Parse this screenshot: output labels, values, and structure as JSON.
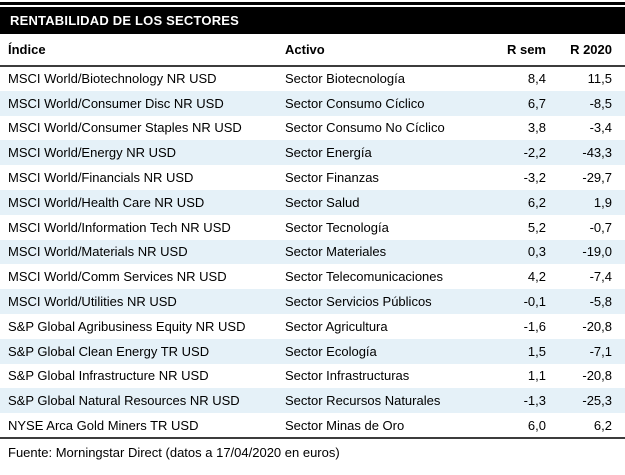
{
  "chart_data": {
    "type": "table",
    "title": "RENTABILIDAD DE LOS SECTORES",
    "columns": [
      "Índice",
      "Activo",
      "R sem",
      "R 2020"
    ],
    "rows": [
      [
        "MSCI World/Biotechnology NR USD",
        "Sector Biotecnología",
        "8,4",
        "11,5"
      ],
      [
        "MSCI World/Consumer Disc NR USD",
        "Sector Consumo Cíclico",
        "6,7",
        "-8,5"
      ],
      [
        "MSCI World/Consumer Staples NR USD",
        "Sector Consumo No Cíclico",
        "3,8",
        "-3,4"
      ],
      [
        "MSCI World/Energy NR USD",
        "Sector Energía",
        "-2,2",
        "-43,3"
      ],
      [
        "MSCI World/Financials NR USD",
        "Sector Finanzas",
        "-3,2",
        "-29,7"
      ],
      [
        "MSCI World/Health Care NR USD",
        "Sector Salud",
        "6,2",
        "1,9"
      ],
      [
        "MSCI World/Information Tech NR USD",
        "Sector Tecnología",
        "5,2",
        "-0,7"
      ],
      [
        "MSCI World/Materials NR USD",
        "Sector Materiales",
        "0,3",
        "-19,0"
      ],
      [
        "MSCI World/Comm Services NR USD",
        "Sector Telecomunicaciones",
        "4,2",
        "-7,4"
      ],
      [
        "MSCI World/Utilities NR USD",
        "Sector Servicios Públicos",
        "-0,1",
        "-5,8"
      ],
      [
        "S&P Global Agribusiness Equity NR USD",
        "Sector Agricultura",
        "-1,6",
        "-20,8"
      ],
      [
        "S&P Global Clean Energy TR USD",
        "Sector Ecología",
        "1,5",
        "-7,1"
      ],
      [
        "S&P Global Infrastructure NR USD",
        "Sector Infrastructuras",
        "1,1",
        "-20,8"
      ],
      [
        "S&P Global Natural Resources NR USD",
        "Sector Recursos Naturales",
        "-1,3",
        "-25,3"
      ],
      [
        "NYSE Arca Gold Miners TR USD",
        "Sector Minas de Oro",
        "6,0",
        "6,2"
      ]
    ],
    "numeric": {
      "r_sem": [
        8.4,
        6.7,
        3.8,
        -2.2,
        -3.2,
        6.2,
        5.2,
        0.3,
        4.2,
        -0.1,
        -1.6,
        1.5,
        1.1,
        -1.3,
        6.0
      ],
      "r_2020": [
        11.5,
        -8.5,
        -3.4,
        -43.3,
        -29.7,
        1.9,
        -0.7,
        -19.0,
        -7.4,
        -5.8,
        -20.8,
        -7.1,
        -20.8,
        -25.3,
        6.2
      ]
    },
    "source": "Fuente: Morningstar Direct (datos a 17/04/2020 en euros)",
    "layout": {
      "stripe_color": "#E5F1F8",
      "title_bar_bg": "#000000",
      "title_bar_text": "#FFFFFF",
      "rule_color": "#3c3c3c",
      "numeric_columns_align": "right"
    }
  }
}
